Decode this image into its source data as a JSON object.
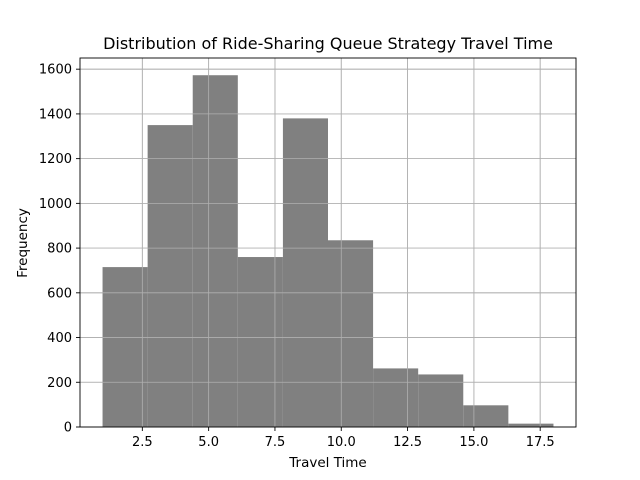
{
  "chart_data": {
    "type": "bar",
    "title": "Distribution of Ride-Sharing Queue Strategy Travel Time",
    "xlabel": "Travel Time",
    "ylabel": "Frequency",
    "bins": [
      {
        "x0": 1.0,
        "x1": 2.7,
        "value": 715
      },
      {
        "x0": 2.7,
        "x1": 4.4,
        "value": 1350
      },
      {
        "x0": 4.4,
        "x1": 6.1,
        "value": 1573
      },
      {
        "x0": 6.1,
        "x1": 7.8,
        "value": 760
      },
      {
        "x0": 7.8,
        "x1": 9.5,
        "value": 1380
      },
      {
        "x0": 9.5,
        "x1": 11.2,
        "value": 835
      },
      {
        "x0": 11.2,
        "x1": 12.9,
        "value": 262
      },
      {
        "x0": 12.9,
        "x1": 14.6,
        "value": 235
      },
      {
        "x0": 14.6,
        "x1": 16.3,
        "value": 97
      },
      {
        "x0": 16.3,
        "x1": 18.0,
        "value": 15
      }
    ],
    "xlim": [
      0.15,
      18.85
    ],
    "ylim": [
      0,
      1650
    ],
    "xticks": [
      2.5,
      5.0,
      7.5,
      10.0,
      12.5,
      15.0,
      17.5
    ],
    "xtick_labels": [
      "2.5",
      "5.0",
      "7.5",
      "10.0",
      "12.5",
      "15.0",
      "17.5"
    ],
    "yticks": [
      0,
      200,
      400,
      600,
      800,
      1000,
      1200,
      1400,
      1600
    ],
    "ytick_labels": [
      "0",
      "200",
      "400",
      "600",
      "800",
      "1000",
      "1200",
      "1400",
      "1600"
    ],
    "grid": true,
    "bar_color": "#808080",
    "grid_color": "#b0b0b0"
  }
}
